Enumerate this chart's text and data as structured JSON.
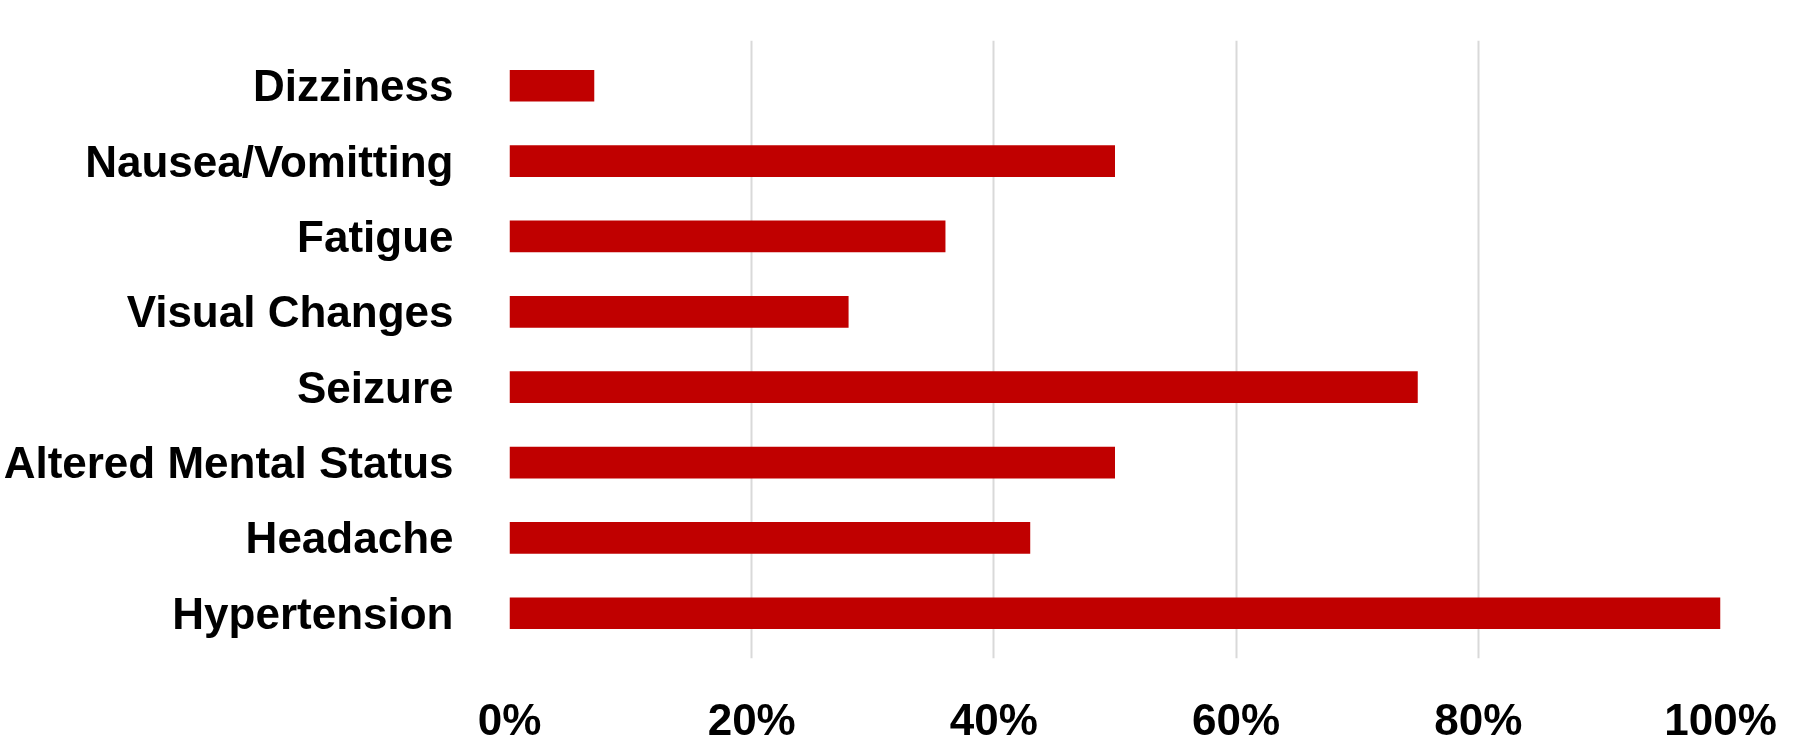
{
  "chart_data": {
    "type": "bar",
    "orientation": "horizontal",
    "categories": [
      "Dizziness",
      "Nausea/Vomitting",
      "Fatigue",
      "Visual Changes",
      "Seizure",
      "Altered Mental Status",
      "Headache",
      "Hypertension"
    ],
    "values": [
      7,
      50,
      36,
      28,
      75,
      50,
      43,
      100
    ],
    "color": "#c00000",
    "xlim": [
      0,
      100
    ],
    "xticks": [
      {
        "value": 0,
        "label": "0%"
      },
      {
        "value": 20,
        "label": "20%"
      },
      {
        "value": 40,
        "label": "40%"
      },
      {
        "value": 60,
        "label": "60%"
      },
      {
        "value": 80,
        "label": "80%"
      },
      {
        "value": 100,
        "label": "100%"
      }
    ],
    "grid": "x"
  }
}
